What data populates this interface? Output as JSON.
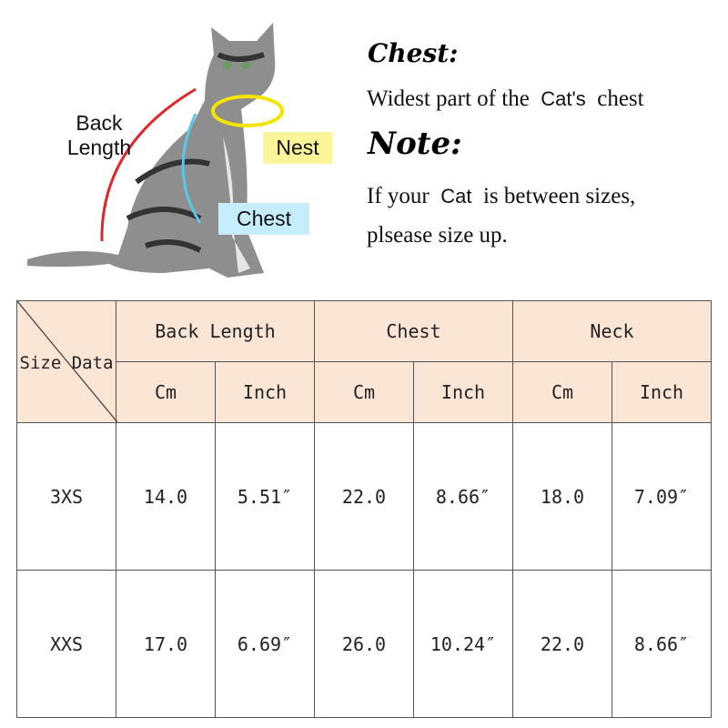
{
  "illustration": {
    "labels": {
      "back_length": "Back\nLength",
      "neck": "Nest",
      "chest": "Chest"
    },
    "colors": {
      "back_length_line": "#e0262a",
      "neck_line": "#f5e400",
      "neck_box": "#fbf59a",
      "chest_line": "#59c8e8",
      "chest_box": "#c6eefa"
    }
  },
  "notes": {
    "chest_heading": "Chest:",
    "chest_text_1": "Widest part of the",
    "chest_text_cat": "Cat's",
    "chest_text_2": "chest",
    "note_heading": "Note:",
    "note_text_1": "If your",
    "note_text_cat": "Cat",
    "note_text_2": "is between sizes,",
    "note_text_3": "plsease size up."
  },
  "table": {
    "corner_label": "Size Data",
    "groups": [
      "Back Length",
      "Chest",
      "Neck"
    ],
    "units": [
      "Cm",
      "Inch",
      "Cm",
      "Inch",
      "Cm",
      "Inch"
    ],
    "header_color": "#fbe6d6",
    "rows": [
      {
        "size": "3XS",
        "values": [
          "14.0",
          "5.51″",
          "22.0",
          "8.66″",
          "18.0",
          "7.09″"
        ]
      },
      {
        "size": "XXS",
        "values": [
          "17.0",
          "6.69″",
          "26.0",
          "10.24″",
          "22.0",
          "8.66″"
        ]
      }
    ]
  }
}
